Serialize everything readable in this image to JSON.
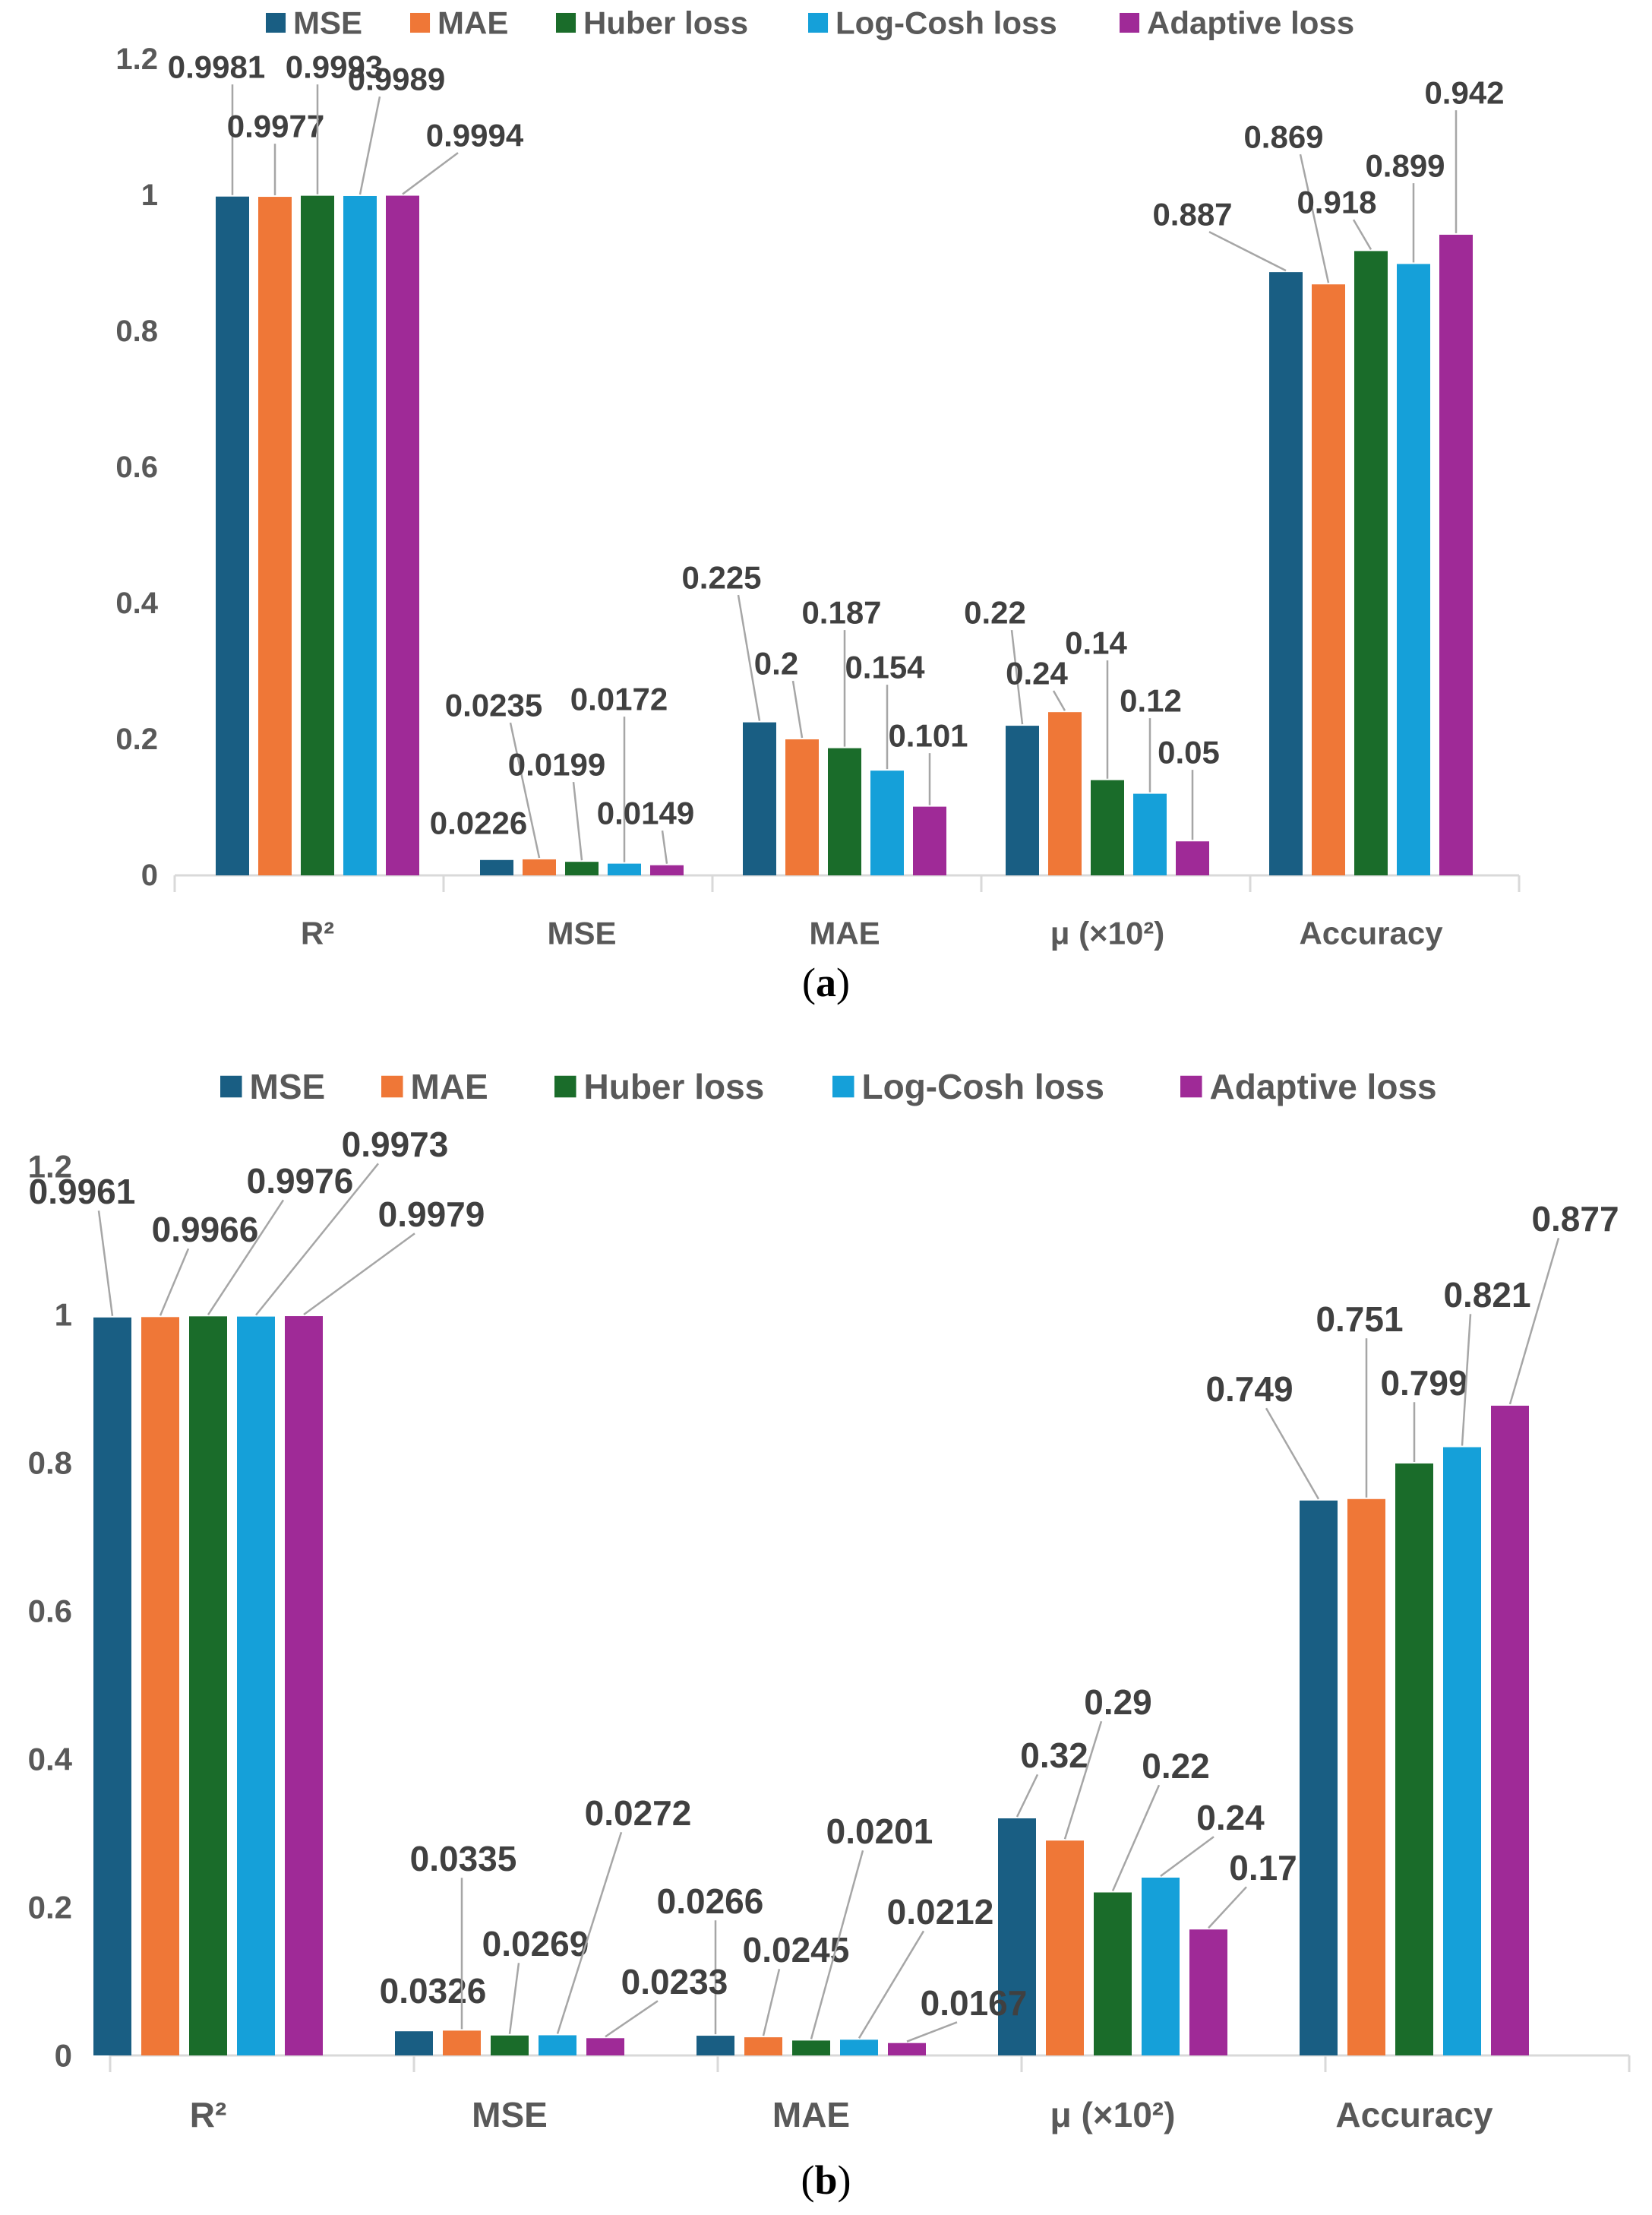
{
  "colors": {
    "MSE": "#195e83",
    "MAE": "#ef7737",
    "Huber loss": "#1a6c2a",
    "Log-Cosh loss": "#15a0d9",
    "Adaptive loss": "#9f2a97",
    "axis": "#d9d9d9",
    "text": "#595959",
    "label": "#404040",
    "leader": "#a6a6a6"
  },
  "captions": {
    "a": "a",
    "b": "b"
  },
  "chart_data": [
    {
      "id": "a",
      "type": "bar",
      "title": "",
      "xlabel": "",
      "ylabel": "",
      "ylim": [
        0,
        1.2
      ],
      "yticks": [
        "0",
        "0.2",
        "0.4",
        "0.6",
        "0.8",
        "1",
        "1.2"
      ],
      "grid": false,
      "legend": "top-center",
      "categories": [
        "R²",
        "MSE",
        "MAE",
        "μ (×10²)",
        "Accuracy"
      ],
      "series": [
        {
          "name": "MSE",
          "values": [
            0.9981,
            0.0226,
            0.225,
            0.22,
            0.887
          ]
        },
        {
          "name": "MAE",
          "values": [
            0.9977,
            0.0235,
            0.2,
            0.24,
            0.869
          ]
        },
        {
          "name": "Huber loss",
          "values": [
            0.9993,
            0.0199,
            0.187,
            0.14,
            0.918
          ]
        },
        {
          "name": "Log-Cosh loss",
          "values": [
            0.9989,
            0.0172,
            0.154,
            0.12,
            0.899
          ]
        },
        {
          "name": "Adaptive loss",
          "values": [
            0.9994,
            0.0149,
            0.101,
            0.05,
            0.942
          ]
        }
      ]
    },
    {
      "id": "b",
      "type": "bar",
      "title": "",
      "xlabel": "",
      "ylabel": "",
      "ylim": [
        0,
        1.2
      ],
      "yticks": [
        "0",
        "0.2",
        "0.4",
        "0.6",
        "0.8",
        "1",
        "1.2"
      ],
      "grid": false,
      "legend": "top-center",
      "categories": [
        "R²",
        "MSE",
        "MAE",
        "μ (×10²)",
        "Accuracy"
      ],
      "series": [
        {
          "name": "MSE",
          "values": [
            0.9961,
            0.0326,
            0.0266,
            0.32,
            0.749
          ]
        },
        {
          "name": "MAE",
          "values": [
            0.9966,
            0.0335,
            0.0245,
            0.29,
            0.751
          ]
        },
        {
          "name": "Huber loss",
          "values": [
            0.9976,
            0.0269,
            0.0201,
            0.22,
            0.799
          ]
        },
        {
          "name": "Log-Cosh loss",
          "values": [
            0.9973,
            0.0272,
            0.0212,
            0.24,
            0.821
          ]
        },
        {
          "name": "Adaptive loss",
          "values": [
            0.9979,
            0.0233,
            0.0167,
            0.17,
            0.877
          ]
        }
      ]
    }
  ]
}
